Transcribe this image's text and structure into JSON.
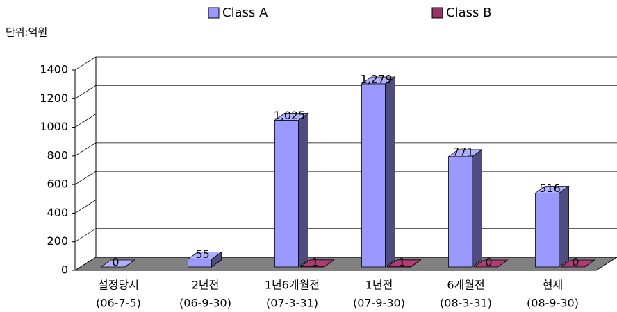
{
  "chart_data": {
    "type": "bar3d",
    "unit_label": "단위:억원",
    "categories": [
      [
        "설정당시",
        "(06-7-5)"
      ],
      [
        "2년전",
        "(06-9-30)"
      ],
      [
        "1년6개월전",
        "(07-3-31)"
      ],
      [
        "1년전",
        "(07-9-30)"
      ],
      [
        "6개월전",
        "(08-3-31)"
      ],
      [
        "현재",
        "(08-9-30)"
      ]
    ],
    "series": [
      {
        "name": "Class A",
        "color": "#9999ff",
        "values": [
          0,
          55,
          1025,
          1279,
          771,
          516
        ],
        "value_labels": [
          "0",
          "55",
          "1,025",
          "1,279",
          "771",
          "516"
        ]
      },
      {
        "name": "Class B",
        "color": "#993366",
        "values": [
          null,
          null,
          1,
          1,
          0,
          0
        ]
      }
    ],
    "ylim": [
      0,
      1400
    ],
    "yticks": [
      0,
      200,
      400,
      600,
      800,
      1000,
      1200,
      1400
    ],
    "grid": true,
    "legend": "top"
  }
}
